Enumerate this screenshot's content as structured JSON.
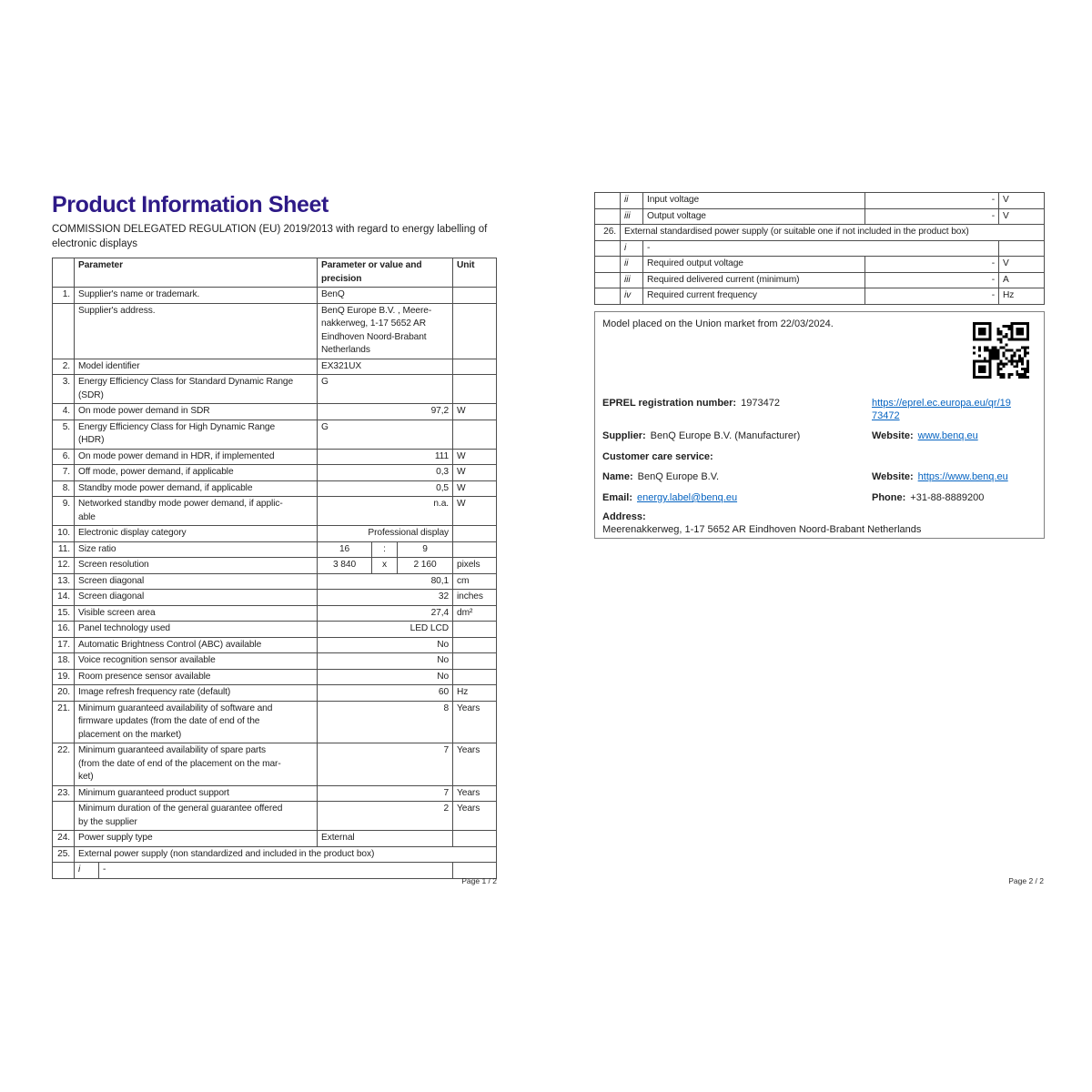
{
  "colors": {
    "title": "#2e1a87",
    "link": "#0563c1",
    "table_border": "#4d4d4d",
    "box_border": "#808080"
  },
  "page1": {
    "title": "Product Information Sheet",
    "subtitle": "COMMISSION DELEGATED REGULATION (EU) 2019/2013 with regard to energy labelling of\nelectronic displays",
    "footer": "Page 1 / 2",
    "table": {
      "header": {
        "parameter": "Parameter",
        "value": "Parameter or value and\nprecision",
        "unit": "Unit"
      },
      "rows": [
        {
          "num": "1.",
          "label": "Supplier's name or trademark.",
          "value": "BenQ",
          "align": "left",
          "unit": ""
        },
        {
          "num": "",
          "label": "Supplier's address.",
          "value": "BenQ Europe B.V. , Meere-\nnakkerweg, 1-17 5652 AR\nEindhoven Noord-Brabant\nNetherlands",
          "align": "left",
          "unit": ""
        },
        {
          "num": "2.",
          "label": "Model identifier",
          "value": "EX321UX",
          "align": "left",
          "unit": ""
        },
        {
          "num": "3.",
          "label": "Energy Efficiency Class for Standard Dynamic Range\n(SDR)",
          "value": "G",
          "align": "left",
          "unit": ""
        },
        {
          "num": "4.",
          "label": "On mode power demand in SDR",
          "value": "97,2",
          "align": "right",
          "unit": "W"
        },
        {
          "num": "5.",
          "label": "Energy Efficiency Class for High Dynamic Range\n(HDR)",
          "value": "G",
          "align": "left",
          "unit": ""
        },
        {
          "num": "6.",
          "label": "On mode power demand in HDR, if implemented",
          "value": "111",
          "align": "right",
          "unit": "W"
        },
        {
          "num": "7.",
          "label": "Off mode, power demand, if applicable",
          "value": "0,3",
          "align": "right",
          "unit": "W"
        },
        {
          "num": "8.",
          "label": "Standby mode power demand, if applicable",
          "value": "0,5",
          "align": "right",
          "unit": "W"
        },
        {
          "num": "9.",
          "label": "Networked standby mode power demand, if applic-\nable",
          "value": "n.a.",
          "align": "right",
          "unit": "W"
        },
        {
          "num": "10.",
          "label": "Electronic display category",
          "value": "Professional display",
          "align": "right",
          "unit": ""
        },
        {
          "num": "11.",
          "label": "Size ratio",
          "split": [
            "16",
            ":",
            "9"
          ],
          "unit": ""
        },
        {
          "num": "12.",
          "label": "Screen resolution",
          "split": [
            "3 840",
            "x",
            "2 160"
          ],
          "unit": "pixels"
        },
        {
          "num": "13.",
          "label": "Screen diagonal",
          "value": "80,1",
          "align": "right",
          "unit": "cm"
        },
        {
          "num": "14.",
          "label": "Screen diagonal",
          "value": "32",
          "align": "right",
          "unit": "inches"
        },
        {
          "num": "15.",
          "label": "Visible screen area",
          "value": "27,4",
          "align": "right",
          "unit": "dm²"
        },
        {
          "num": "16.",
          "label": "Panel technology used",
          "value": "LED LCD",
          "align": "right",
          "unit": ""
        },
        {
          "num": "17.",
          "label": "Automatic Brightness Control (ABC) available",
          "value": "No",
          "align": "right",
          "unit": ""
        },
        {
          "num": "18.",
          "label": "Voice recognition sensor available",
          "value": "No",
          "align": "right",
          "unit": ""
        },
        {
          "num": "19.",
          "label": "Room presence sensor available",
          "value": "No",
          "align": "right",
          "unit": ""
        },
        {
          "num": "20.",
          "label": "Image refresh frequency rate (default)",
          "value": "60",
          "align": "right",
          "unit": "Hz"
        },
        {
          "num": "21.",
          "label": "Minimum guaranteed availability of software and\nfirmware updates (from the date of end of the\nplacement on the market)",
          "value": "8",
          "align": "right",
          "unit": "Years"
        },
        {
          "num": "22.",
          "label": "Minimum guaranteed availability of spare parts\n(from the date of end of the placement on the mar-\nket)",
          "value": "7",
          "align": "right",
          "unit": "Years"
        },
        {
          "num": "23.",
          "label": "Minimum guaranteed product support",
          "value": "7",
          "align": "right",
          "unit": "Years"
        },
        {
          "num": "",
          "label": "Minimum duration of the general guarantee offered\nby the supplier",
          "value": "2",
          "align": "right",
          "unit": "Years"
        },
        {
          "num": "24.",
          "label": "Power supply type",
          "value": "External",
          "align": "left",
          "unit": ""
        },
        {
          "num": "25.",
          "span": "External power supply (non standardized and included in the product box)"
        },
        {
          "sub": "i",
          "label": "-"
        }
      ]
    }
  },
  "page2": {
    "footer": "Page 2 / 2",
    "table": {
      "rows": [
        {
          "roman": "ii",
          "label": "Input voltage",
          "value": "-",
          "unit": "V"
        },
        {
          "roman": "iii",
          "label": "Output voltage",
          "value": "-",
          "unit": "V"
        },
        {
          "num": "26.",
          "span": "External standardised power supply (or suitable one if not included in the product box)"
        },
        {
          "roman": "i",
          "merged": "-"
        },
        {
          "roman": "ii",
          "label": "Required output voltage",
          "value": "-",
          "unit": "V"
        },
        {
          "roman": "iii",
          "label": "Required delivered current (minimum)",
          "value": "-",
          "unit": "A"
        },
        {
          "roman": "iv",
          "label": "Required current frequency",
          "value": "-",
          "unit": "Hz"
        }
      ]
    },
    "info_box": {
      "model_line": "Model placed on the Union market from 22/03/2024.",
      "qr_icon": "qr-code",
      "eprel_label": "EPREL registration number:",
      "eprel_value": "1973472",
      "eprel_link": "https://eprel.ec.europa.eu/qr/19\n73472",
      "supplier_label": "Supplier:",
      "supplier_value": "BenQ Europe B.V. (Manufacturer)",
      "website1_label": "Website:",
      "website1_value": "www.benq.eu",
      "customer_care_label": "Customer care service:",
      "name_label": "Name:",
      "name_value": "BenQ Europe B.V.",
      "website2_label": "Website:",
      "website2_value": "https://www.benq.eu",
      "email_label": "Email:",
      "email_value": "energy.label@benq.eu",
      "phone_label": "Phone:",
      "phone_value": "+31-88-8889200",
      "address_label": "Address:",
      "address_value": "Meerenakkerweg, 1-17 5652 AR Eindhoven Noord-Brabant Netherlands"
    }
  }
}
